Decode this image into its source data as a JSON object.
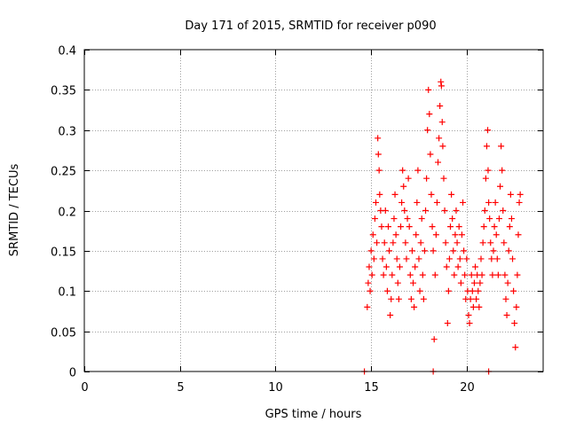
{
  "chart_data": {
    "type": "scatter",
    "title": "Day 171 of 2015, SRMTID for receiver p090",
    "xlabel": "GPS time / hours",
    "ylabel": "SRMTID / TECUs",
    "xlim": [
      0,
      24
    ],
    "ylim": [
      0,
      0.4
    ],
    "xticks": [
      0,
      5,
      10,
      15,
      20
    ],
    "xtick_labels": [
      "0",
      "5",
      "10",
      "15",
      "20"
    ],
    "yticks": [
      0,
      0.05,
      0.1,
      0.15,
      0.2,
      0.25,
      0.3,
      0.35,
      0.4
    ],
    "ytick_labels": [
      "0",
      "0.05",
      "0.1",
      "0.15",
      "0.2",
      "0.25",
      "0.3",
      "0.35",
      "0.4"
    ],
    "grid": true,
    "marker": "+",
    "marker_color": "#ff0000",
    "series": [
      {
        "name": "SRMTID",
        "points": [
          [
            14.65,
            0.0
          ],
          [
            18.25,
            0.0
          ],
          [
            21.15,
            0.0
          ],
          [
            14.8,
            0.08
          ],
          [
            14.85,
            0.11
          ],
          [
            14.9,
            0.13
          ],
          [
            14.95,
            0.1
          ],
          [
            15.0,
            0.15
          ],
          [
            15.05,
            0.12
          ],
          [
            15.1,
            0.17
          ],
          [
            15.15,
            0.14
          ],
          [
            15.2,
            0.19
          ],
          [
            15.25,
            0.21
          ],
          [
            15.3,
            0.16
          ],
          [
            15.35,
            0.29
          ],
          [
            15.38,
            0.27
          ],
          [
            15.42,
            0.25
          ],
          [
            15.45,
            0.22
          ],
          [
            15.5,
            0.2
          ],
          [
            15.55,
            0.18
          ],
          [
            15.6,
            0.14
          ],
          [
            15.65,
            0.12
          ],
          [
            15.7,
            0.16
          ],
          [
            15.75,
            0.2
          ],
          [
            15.8,
            0.13
          ],
          [
            15.85,
            0.1
          ],
          [
            15.9,
            0.18
          ],
          [
            15.95,
            0.15
          ],
          [
            16.0,
            0.07
          ],
          [
            16.05,
            0.09
          ],
          [
            16.1,
            0.12
          ],
          [
            16.15,
            0.16
          ],
          [
            16.2,
            0.19
          ],
          [
            16.25,
            0.22
          ],
          [
            16.3,
            0.17
          ],
          [
            16.35,
            0.14
          ],
          [
            16.4,
            0.11
          ],
          [
            16.45,
            0.09
          ],
          [
            16.5,
            0.13
          ],
          [
            16.55,
            0.18
          ],
          [
            16.6,
            0.21
          ],
          [
            16.65,
            0.25
          ],
          [
            16.7,
            0.23
          ],
          [
            16.75,
            0.2
          ],
          [
            16.8,
            0.16
          ],
          [
            16.85,
            0.14
          ],
          [
            16.9,
            0.19
          ],
          [
            16.95,
            0.24
          ],
          [
            17.0,
            0.18
          ],
          [
            17.05,
            0.12
          ],
          [
            17.1,
            0.09
          ],
          [
            17.15,
            0.15
          ],
          [
            17.2,
            0.11
          ],
          [
            17.25,
            0.08
          ],
          [
            17.3,
            0.13
          ],
          [
            17.35,
            0.17
          ],
          [
            17.4,
            0.21
          ],
          [
            17.45,
            0.25
          ],
          [
            17.5,
            0.14
          ],
          [
            17.55,
            0.1
          ],
          [
            17.6,
            0.16
          ],
          [
            17.65,
            0.19
          ],
          [
            17.7,
            0.12
          ],
          [
            17.75,
            0.09
          ],
          [
            17.8,
            0.15
          ],
          [
            17.85,
            0.2
          ],
          [
            17.9,
            0.24
          ],
          [
            17.95,
            0.3
          ],
          [
            18.0,
            0.35
          ],
          [
            18.05,
            0.32
          ],
          [
            18.1,
            0.27
          ],
          [
            18.15,
            0.22
          ],
          [
            18.2,
            0.18
          ],
          [
            18.25,
            0.15
          ],
          [
            18.3,
            0.04
          ],
          [
            18.35,
            0.12
          ],
          [
            18.4,
            0.17
          ],
          [
            18.45,
            0.21
          ],
          [
            18.5,
            0.26
          ],
          [
            18.55,
            0.29
          ],
          [
            18.6,
            0.33
          ],
          [
            18.65,
            0.36
          ],
          [
            18.68,
            0.355
          ],
          [
            18.72,
            0.31
          ],
          [
            18.75,
            0.28
          ],
          [
            18.8,
            0.24
          ],
          [
            18.85,
            0.2
          ],
          [
            18.9,
            0.16
          ],
          [
            18.95,
            0.13
          ],
          [
            19.0,
            0.06
          ],
          [
            19.05,
            0.1
          ],
          [
            19.1,
            0.14
          ],
          [
            19.15,
            0.18
          ],
          [
            19.2,
            0.22
          ],
          [
            19.25,
            0.19
          ],
          [
            19.3,
            0.15
          ],
          [
            19.35,
            0.12
          ],
          [
            19.4,
            0.17
          ],
          [
            19.45,
            0.2
          ],
          [
            19.5,
            0.16
          ],
          [
            19.55,
            0.13
          ],
          [
            19.6,
            0.18
          ],
          [
            19.65,
            0.14
          ],
          [
            19.7,
            0.11
          ],
          [
            19.75,
            0.17
          ],
          [
            19.8,
            0.21
          ],
          [
            19.85,
            0.15
          ],
          [
            19.9,
            0.12
          ],
          [
            19.95,
            0.09
          ],
          [
            20.0,
            0.14
          ],
          [
            20.05,
            0.1
          ],
          [
            20.1,
            0.07
          ],
          [
            20.15,
            0.06
          ],
          [
            20.2,
            0.09
          ],
          [
            20.25,
            0.12
          ],
          [
            20.3,
            0.1
          ],
          [
            20.35,
            0.08
          ],
          [
            20.4,
            0.11
          ],
          [
            20.45,
            0.13
          ],
          [
            20.5,
            0.09
          ],
          [
            20.55,
            0.12
          ],
          [
            20.6,
            0.1
          ],
          [
            20.65,
            0.08
          ],
          [
            20.7,
            0.11
          ],
          [
            20.75,
            0.14
          ],
          [
            20.8,
            0.12
          ],
          [
            20.85,
            0.16
          ],
          [
            20.9,
            0.18
          ],
          [
            20.95,
            0.2
          ],
          [
            21.0,
            0.24
          ],
          [
            21.05,
            0.28
          ],
          [
            21.1,
            0.3
          ],
          [
            21.12,
            0.25
          ],
          [
            21.15,
            0.21
          ],
          [
            21.2,
            0.19
          ],
          [
            21.25,
            0.16
          ],
          [
            21.3,
            0.14
          ],
          [
            21.35,
            0.12
          ],
          [
            21.4,
            0.15
          ],
          [
            21.45,
            0.18
          ],
          [
            21.5,
            0.21
          ],
          [
            21.55,
            0.17
          ],
          [
            21.6,
            0.14
          ],
          [
            21.65,
            0.12
          ],
          [
            21.7,
            0.19
          ],
          [
            21.75,
            0.23
          ],
          [
            21.8,
            0.28
          ],
          [
            21.85,
            0.25
          ],
          [
            21.9,
            0.2
          ],
          [
            21.95,
            0.16
          ],
          [
            22.0,
            0.12
          ],
          [
            22.05,
            0.09
          ],
          [
            22.1,
            0.07
          ],
          [
            22.15,
            0.11
          ],
          [
            22.2,
            0.15
          ],
          [
            22.25,
            0.18
          ],
          [
            22.3,
            0.22
          ],
          [
            22.35,
            0.19
          ],
          [
            22.4,
            0.14
          ],
          [
            22.45,
            0.1
          ],
          [
            22.5,
            0.06
          ],
          [
            22.55,
            0.03
          ],
          [
            22.6,
            0.08
          ],
          [
            22.65,
            0.12
          ],
          [
            22.7,
            0.17
          ],
          [
            22.75,
            0.21
          ],
          [
            22.8,
            0.22
          ]
        ]
      }
    ]
  }
}
